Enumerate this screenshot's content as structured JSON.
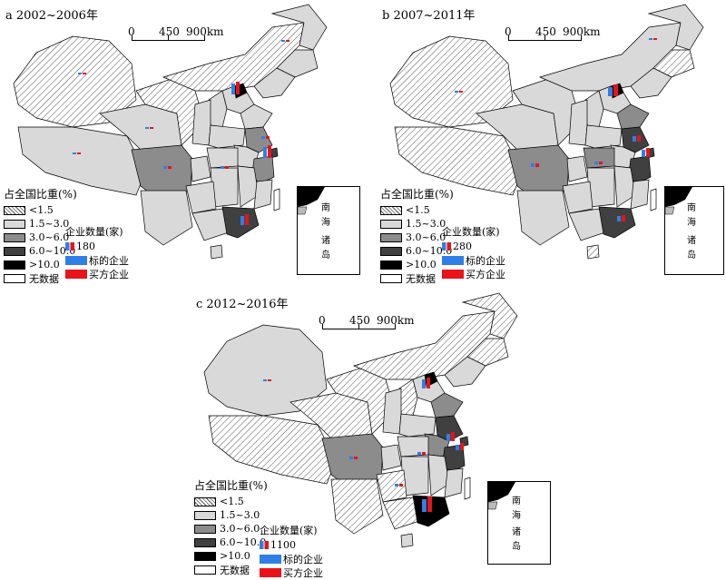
{
  "panels": [
    {
      "id": "a",
      "title": "a 2002~2006年",
      "max_count": "180"
    },
    {
      "id": "b",
      "title": "b 2007~2011年",
      "max_count": "280"
    },
    {
      "id": "c",
      "title": "c 2012~2016年",
      "max_count": "1100"
    }
  ],
  "scale": {
    "t0": "0",
    "t1": "450",
    "t2": "900km"
  },
  "legend": {
    "title": "占全国比重(%)",
    "classes": [
      "<1.5",
      "1.5~3.0",
      "3.0~6.0",
      "6.0~10.0",
      ">10.0",
      "无数据"
    ]
  },
  "firm_legend": {
    "title": "企业数量(家)",
    "target": "标的企业",
    "acquirer": "买方企业"
  },
  "inset": {
    "l1": "南",
    "l2": "海",
    "l3": "诸",
    "l4": "岛"
  },
  "colors": {
    "target": "#2f7fe6",
    "acquirer": "#e8141a",
    "c0": "hatched",
    "c1": "#d9d9d9",
    "c2": "#8c8c8c",
    "c3": "#404040",
    "c4": "#000000",
    "c5": "#ffffff"
  }
}
